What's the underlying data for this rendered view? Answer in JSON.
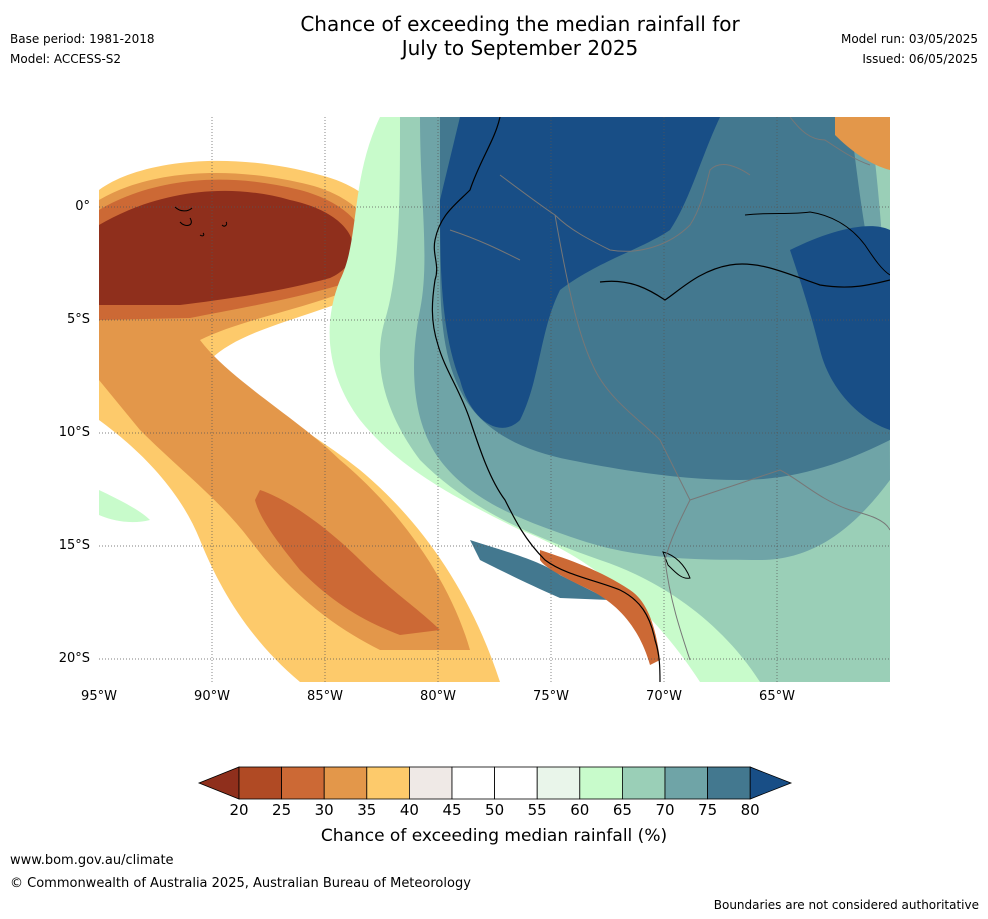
{
  "header": {
    "title_line1": "Chance of exceeding the median rainfall for",
    "title_line2": "July to September 2025",
    "base_period": "Base period: 1981-2018",
    "model": "Model: ACCESS-S2",
    "model_run": "Model run: 03/05/2025",
    "issued": "Issued: 06/05/2025"
  },
  "map": {
    "lat_labels": [
      "0°",
      "5°S",
      "10°S",
      "15°S",
      "20°S"
    ],
    "lon_labels": [
      "95°W",
      "90°W",
      "85°W",
      "80°W",
      "75°W",
      "70°W",
      "65°W"
    ],
    "lon_range": [
      -95,
      -60
    ],
    "lat_range": [
      -21,
      4
    ]
  },
  "colorbar": {
    "title": "Chance of exceeding median rainfall (%)",
    "ticks": [
      "20",
      "25",
      "30",
      "35",
      "40",
      "45",
      "50",
      "55",
      "60",
      "65",
      "70",
      "75",
      "80"
    ],
    "colors": [
      "#8f2f1c",
      "#b04a24",
      "#cc6935",
      "#e3974a",
      "#fdca6b",
      "#efe9e6",
      "#ffffff",
      "#ffffff",
      "#e9f5ea",
      "#c8fbcb",
      "#9acfb7",
      "#6fa4a7",
      "#43788f",
      "#184e86"
    ]
  },
  "footer": {
    "url": "www.bom.gov.au/climate",
    "copyright": "© Commonwealth of Australia 2025, Australian Bureau of Meteorology",
    "disclaimer": "Boundaries are not considered authoritative"
  }
}
